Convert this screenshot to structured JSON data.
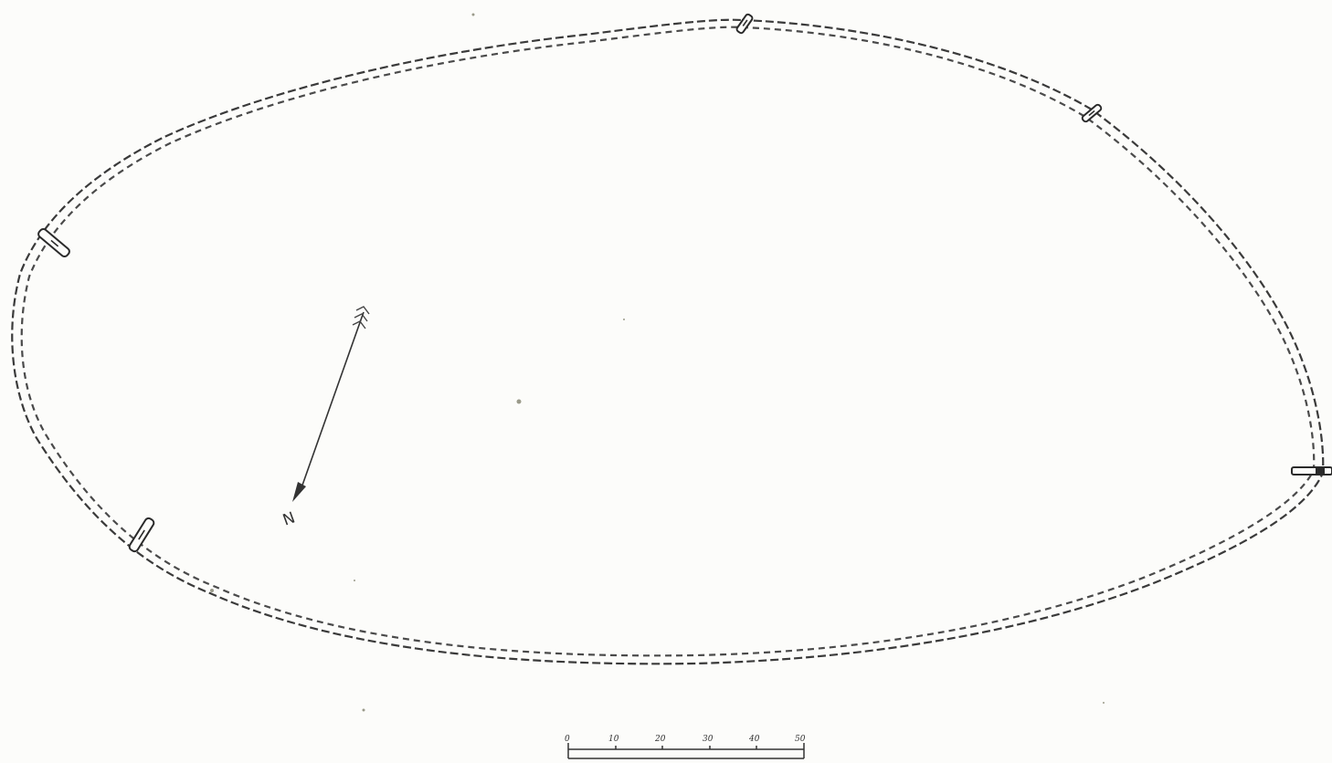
{
  "map": {
    "north_label": "N",
    "scale_bar": {
      "tick_labels": [
        "0",
        "10",
        "20",
        "30",
        "40",
        "50"
      ]
    },
    "entrances": [
      "entrance-north",
      "entrance-northeast",
      "entrance-east",
      "entrance-south",
      "entrance-west"
    ],
    "colors": {
      "paper": "#fcfcfa",
      "ink": "#333333"
    },
    "icons": [
      "north-arrow-icon",
      "scale-bar-icon"
    ]
  }
}
